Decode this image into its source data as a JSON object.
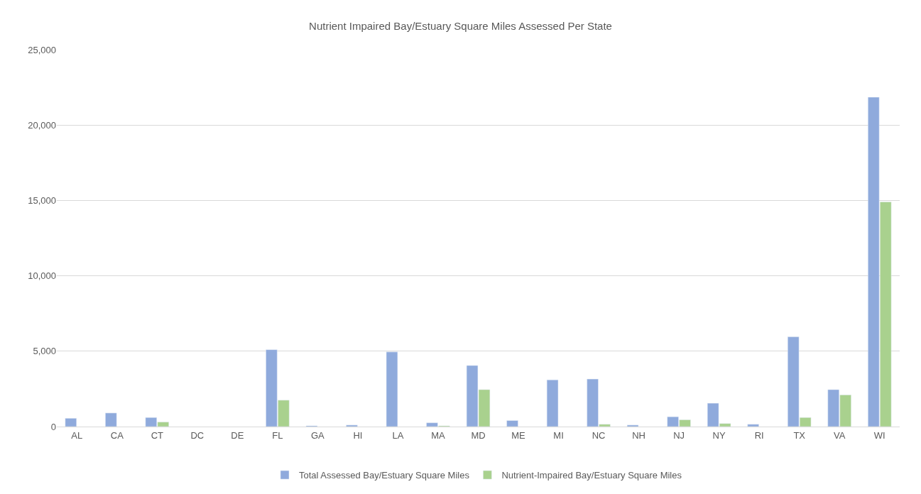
{
  "chart_data": {
    "type": "bar",
    "title": "Nutrient Impaired Bay/Estuary Square Miles Assessed Per State",
    "categories": [
      "AL",
      "CA",
      "CT",
      "DC",
      "DE",
      "FL",
      "GA",
      "HI",
      "LA",
      "MA",
      "MD",
      "ME",
      "MI",
      "NC",
      "NH",
      "NJ",
      "NY",
      "RI",
      "TX",
      "VA",
      "WI"
    ],
    "series": [
      {
        "name": "Total Assessed Bay/Estuary Square Miles",
        "color": "#8faadc",
        "values": [
          550,
          900,
          600,
          null,
          null,
          5100,
          50,
          100,
          4950,
          250,
          4050,
          400,
          3100,
          3150,
          100,
          650,
          1550,
          150,
          5950,
          2450,
          21850
        ]
      },
      {
        "name": "Nutrient-Impaired Bay/Estuary Square Miles",
        "color": "#a9d18e",
        "values": [
          null,
          null,
          300,
          null,
          null,
          1750,
          null,
          null,
          null,
          50,
          2450,
          null,
          null,
          150,
          null,
          450,
          200,
          null,
          600,
          2100,
          14900
        ]
      }
    ],
    "ylim": [
      0,
      25000
    ],
    "yticks": [
      {
        "value": 0,
        "label": "0"
      },
      {
        "value": 5000,
        "label": "5,000"
      },
      {
        "value": 10000,
        "label": "10,000"
      },
      {
        "value": 15000,
        "label": "15,000"
      },
      {
        "value": 20000,
        "label": "20,000"
      },
      {
        "value": 25000,
        "label": "25,000"
      }
    ],
    "grid": "y",
    "legend": "bottom"
  }
}
